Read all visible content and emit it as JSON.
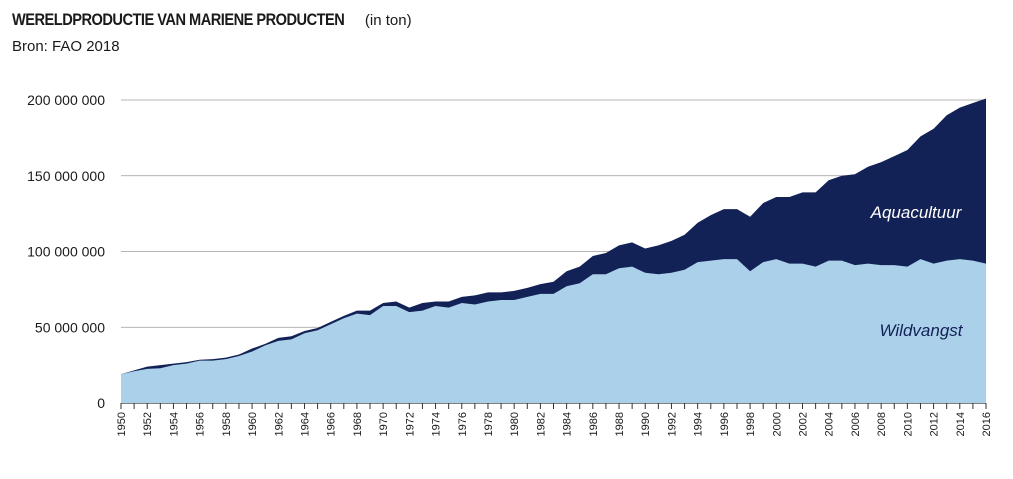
{
  "header": {
    "title": "WERELDPRODUCTIE VAN MARIENE PRODUCTEN",
    "unit_note": "(in ton)",
    "source": "Bron: FAO 2018"
  },
  "colors": {
    "wildvangst": "#abd0ea",
    "aquacultuur": "#132256",
    "aquacultuur_label": "#ffffff",
    "wildvangst_label": "#132256",
    "grid": "#9a9a9a"
  },
  "chart_data": {
    "type": "area",
    "stacked": true,
    "x": [
      1950,
      1951,
      1952,
      1953,
      1954,
      1955,
      1956,
      1957,
      1958,
      1959,
      1960,
      1961,
      1962,
      1963,
      1964,
      1965,
      1966,
      1967,
      1968,
      1969,
      1970,
      1971,
      1972,
      1973,
      1974,
      1975,
      1976,
      1977,
      1978,
      1979,
      1980,
      1981,
      1982,
      1983,
      1984,
      1985,
      1986,
      1987,
      1988,
      1989,
      1990,
      1991,
      1992,
      1993,
      1994,
      1995,
      1996,
      1997,
      1998,
      1999,
      2000,
      2001,
      2002,
      2003,
      2004,
      2005,
      2006,
      2007,
      2008,
      2009,
      2010,
      2011,
      2012,
      2013,
      2014,
      2015,
      2016
    ],
    "x_tick_labels": [
      "1950",
      "1952",
      "1954",
      "1956",
      "1958",
      "1960",
      "1962",
      "1964",
      "1966",
      "1968",
      "1970",
      "1972",
      "1974",
      "1976",
      "1978",
      "1980",
      "1982",
      "1984",
      "1986",
      "1988",
      "1990",
      "1992",
      "1994",
      "1996",
      "1998",
      "2000",
      "2002",
      "2004",
      "2006",
      "2008",
      "2010",
      "2012",
      "2014",
      "2016"
    ],
    "y_tick_labels": [
      "0",
      "50 000 000",
      "100 000 000",
      "150 000 000",
      "200 000 000"
    ],
    "ylim": [
      0,
      200000000
    ],
    "grid": true,
    "series": [
      {
        "name": "Wildvangst",
        "values": [
          19000000,
          21000000,
          22500000,
          23000000,
          25000000,
          26000000,
          28000000,
          28000000,
          29000000,
          31000000,
          34000000,
          38000000,
          41000000,
          42000000,
          46000000,
          48000000,
          52000000,
          56000000,
          59000000,
          58000000,
          64000000,
          64000000,
          60000000,
          61000000,
          64000000,
          63000000,
          66000000,
          65000000,
          67000000,
          68000000,
          68000000,
          70000000,
          72000000,
          72000000,
          77000000,
          79000000,
          85000000,
          85000000,
          89000000,
          90000000,
          86000000,
          85000000,
          86000000,
          88000000,
          93000000,
          94000000,
          95000000,
          95000000,
          87000000,
          93000000,
          95000000,
          92000000,
          92000000,
          90000000,
          94000000,
          94000000,
          91000000,
          92000000,
          91000000,
          91000000,
          90000000,
          95000000,
          92000000,
          94000000,
          95000000,
          94000000,
          92000000
        ]
      },
      {
        "name": "Aquacultuur",
        "values": [
          0,
          500000,
          1500000,
          2000000,
          1000000,
          1000000,
          500000,
          1000000,
          1000000,
          1000000,
          2000000,
          1000000,
          2000000,
          2000000,
          1500000,
          1500000,
          1500000,
          1500000,
          2000000,
          3000000,
          2000000,
          3000000,
          3000000,
          5000000,
          3000000,
          4000000,
          4000000,
          6000000,
          6000000,
          5000000,
          6000000,
          6000000,
          6500000,
          8000000,
          10000000,
          11000000,
          12000000,
          14000000,
          15000000,
          16000000,
          16000000,
          19000000,
          21000000,
          23000000,
          26000000,
          30000000,
          33000000,
          33000000,
          36000000,
          39000000,
          41000000,
          44000000,
          47000000,
          49000000,
          53000000,
          56000000,
          60000000,
          64000000,
          68000000,
          72000000,
          77000000,
          81000000,
          89000000,
          96000000,
          100000000,
          104000000,
          109000000
        ]
      }
    ]
  }
}
